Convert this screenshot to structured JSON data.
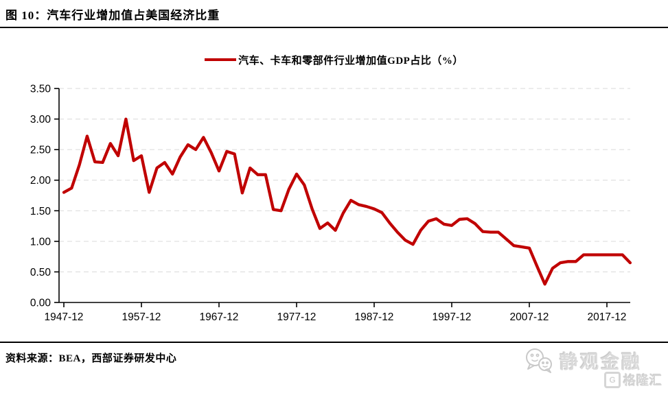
{
  "page": {
    "title": "图 10：汽车行业增加值占美国经济比重"
  },
  "legend": {
    "label": "汽车、卡车和零部件行业增加值GDP占比（%）"
  },
  "source": {
    "text": "资料来源：BEA，西部证券研发中心"
  },
  "watermark": {
    "brand": "静观金融",
    "platform_letter": "G",
    "platform": "格隆汇"
  },
  "colors": {
    "line": "#C00000",
    "grid": "#D9D9D9",
    "axis": "#000000",
    "tick_text": "#000000",
    "watermark": "#D5D5D5"
  },
  "chart_data": {
    "type": "line",
    "title": "汽车、卡车和零部件行业增加值GDP占比（%）",
    "x_start_year": 1947,
    "x_end_year": 2020,
    "x_month_suffix": "-12",
    "x_tick_labels": [
      "1947-12",
      "1957-12",
      "1967-12",
      "1977-12",
      "1987-12",
      "1997-12",
      "2007-12",
      "2017-12"
    ],
    "y_tick_labels": [
      "0.00",
      "0.50",
      "1.00",
      "1.50",
      "2.00",
      "2.50",
      "3.00",
      "3.50"
    ],
    "ylim": [
      0.0,
      3.5
    ],
    "y_step": 0.5,
    "grid": "horizontal-dashed",
    "legend_position": "top-center",
    "series": [
      {
        "name": "汽车、卡车和零部件行业增加值GDP占比（%）",
        "color": "#C00000",
        "values": [
          1.8,
          1.87,
          2.25,
          2.72,
          2.3,
          2.29,
          2.6,
          2.4,
          3.0,
          2.32,
          2.4,
          1.8,
          2.2,
          2.29,
          2.1,
          2.38,
          2.58,
          2.5,
          2.7,
          2.45,
          2.15,
          2.47,
          2.43,
          1.79,
          2.2,
          2.09,
          2.09,
          1.52,
          1.5,
          1.85,
          2.1,
          1.92,
          1.53,
          1.21,
          1.3,
          1.18,
          1.46,
          1.67,
          1.6,
          1.57,
          1.53,
          1.47,
          1.3,
          1.15,
          1.02,
          0.95,
          1.18,
          1.33,
          1.37,
          1.28,
          1.26,
          1.36,
          1.37,
          1.29,
          1.16,
          1.15,
          1.15,
          1.04,
          0.93,
          0.91,
          0.89,
          0.59,
          0.3,
          0.56,
          0.65,
          0.67,
          0.67,
          0.78,
          0.78,
          0.78,
          0.78,
          0.78,
          0.78,
          0.65
        ]
      }
    ]
  }
}
